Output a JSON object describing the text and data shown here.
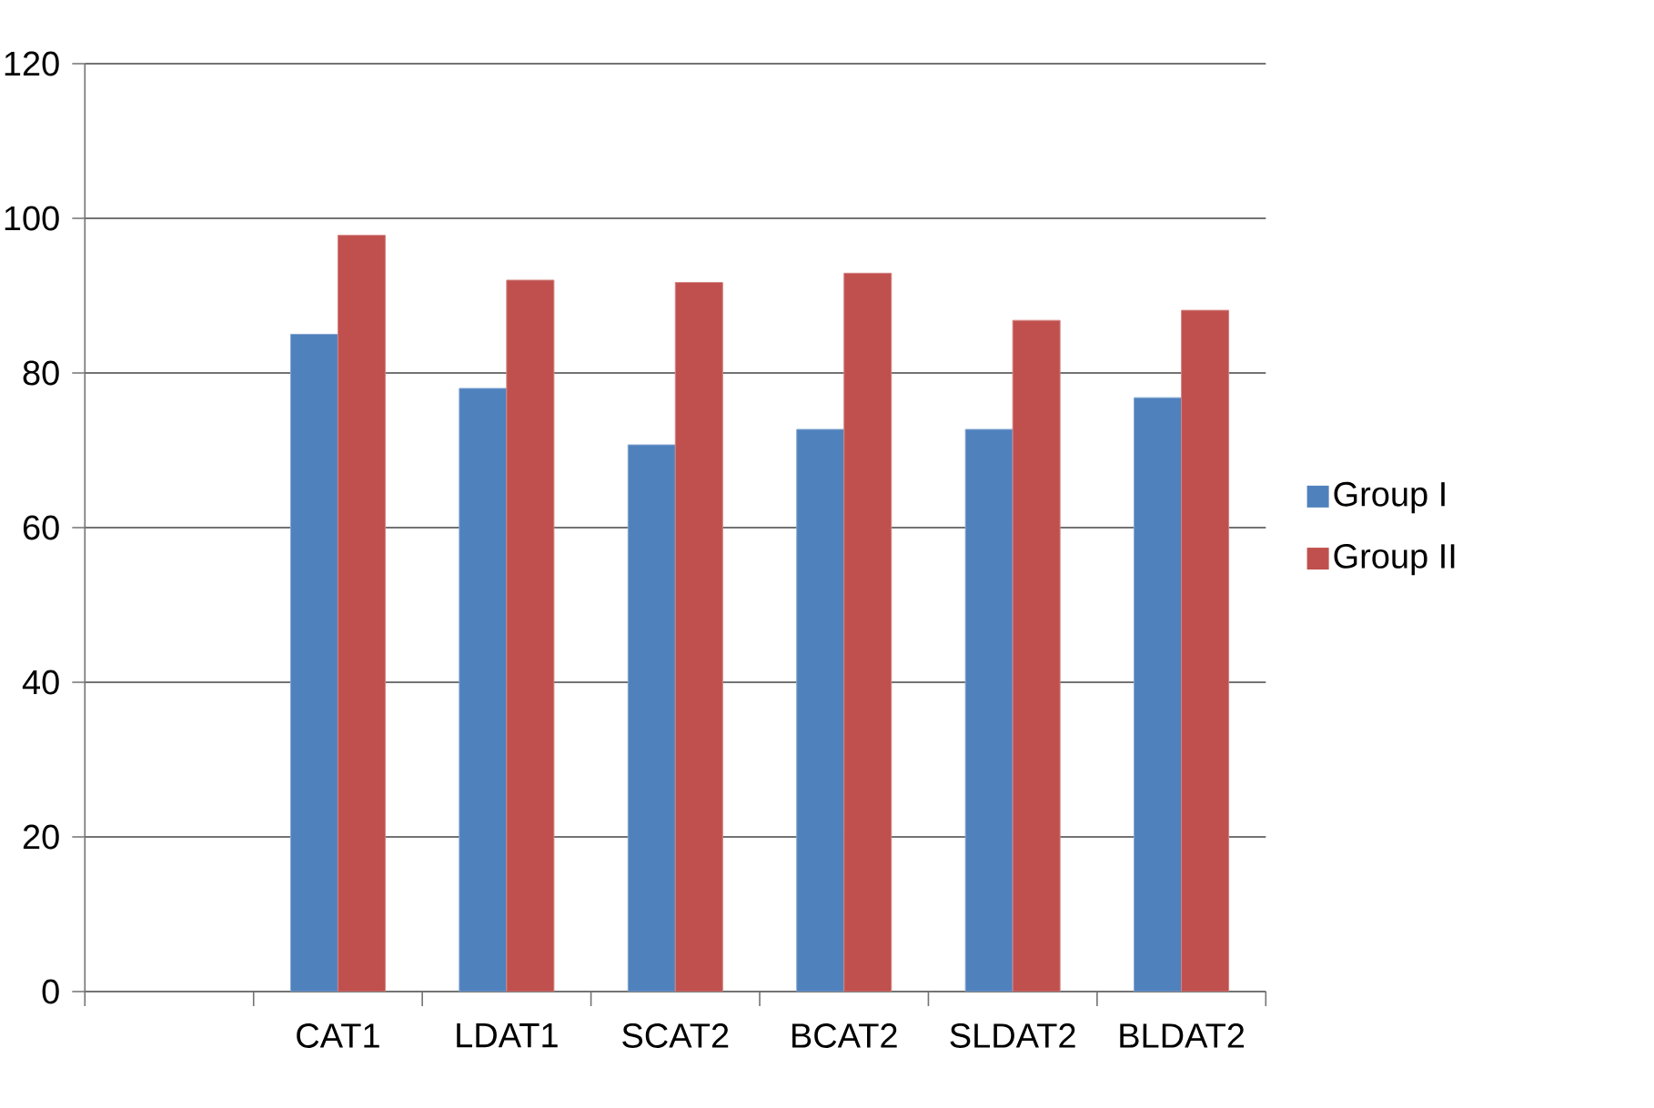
{
  "chart_data": {
    "type": "bar",
    "categories": [
      null,
      "CAT1",
      "LDAT1",
      "SCAT2",
      "BCAT2",
      "SLDAT2",
      "BLDAT2"
    ],
    "series": [
      {
        "name": "Group I",
        "color": "#4f81bd",
        "values": [
          null,
          85,
          78,
          70.7,
          72.7,
          72.7,
          76.8
        ]
      },
      {
        "name": "Group II",
        "color": "#c0504d",
        "values": [
          null,
          97.8,
          92,
          91.7,
          92.9,
          86.8,
          88.1
        ]
      }
    ],
    "ylim": [
      0,
      120
    ],
    "yticks": [
      0,
      20,
      40,
      60,
      80,
      100,
      120
    ],
    "grid": "y",
    "legend": "right"
  }
}
